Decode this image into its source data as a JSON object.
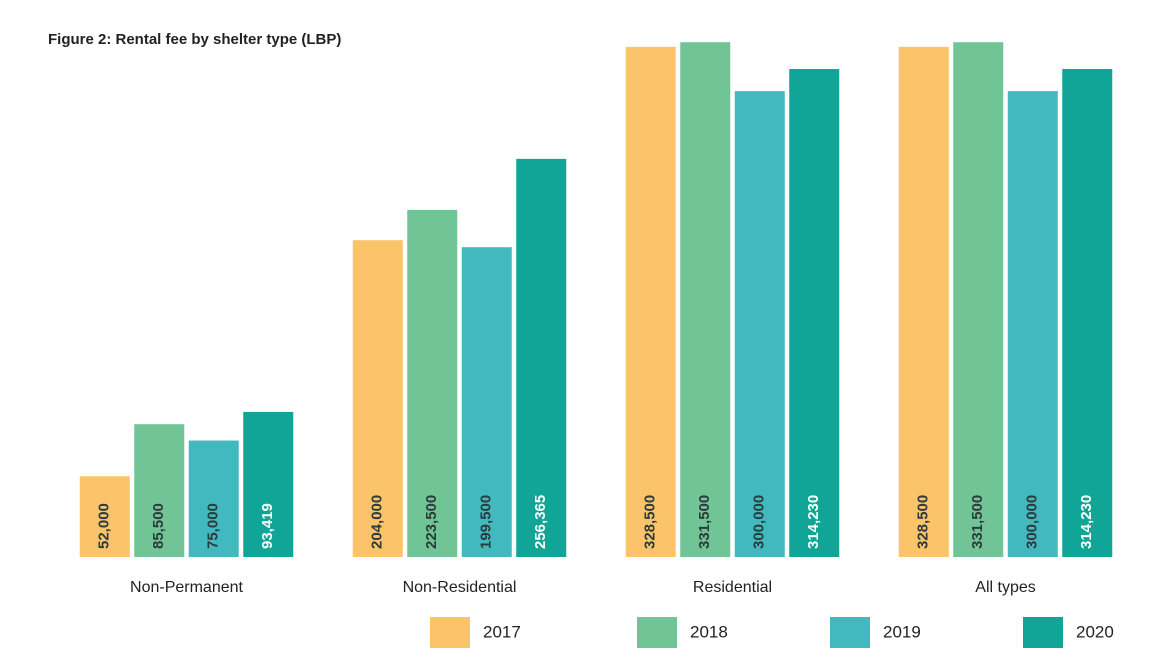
{
  "chart_data": {
    "type": "bar",
    "title": "Figure 2: Rental fee by shelter type (LBP)",
    "categories": [
      "Non-Permanent",
      "Non-Residential",
      "Residential",
      "All types"
    ],
    "series": [
      {
        "name": "2017",
        "color": "#fcc46a",
        "values": [
          52000,
          204000,
          328500,
          328500
        ],
        "value_labels": [
          "52,000",
          "204,000",
          "328,500",
          "328,500"
        ]
      },
      {
        "name": "2018",
        "color": "#71c495",
        "values": [
          85500,
          223500,
          331500,
          331500
        ],
        "value_labels": [
          "85,500",
          "223,500",
          "331,500",
          "331,500"
        ]
      },
      {
        "name": "2019",
        "color": "#42b8bf",
        "values": [
          75000,
          199500,
          300000,
          300000
        ],
        "value_labels": [
          "75,000",
          "199,500",
          "300,000",
          "300,000"
        ]
      },
      {
        "name": "2020",
        "color": "#10a596",
        "values": [
          93419,
          256365,
          314230,
          314230
        ],
        "value_labels": [
          "93,419",
          "256,365",
          "314,230",
          "314,230"
        ]
      }
    ],
    "ylim": [
      0,
      340000
    ],
    "grid": false,
    "legend": "bottom"
  }
}
